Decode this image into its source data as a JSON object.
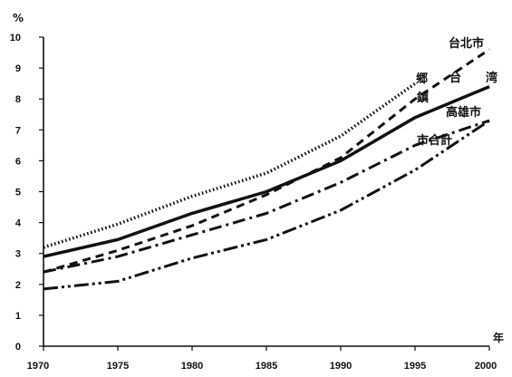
{
  "chart_data": {
    "type": "line",
    "y_unit": "%",
    "x_unit": "年",
    "xlim": [
      1970,
      2000
    ],
    "ylim": [
      0,
      10
    ],
    "x_ticks": [
      "1970",
      "1975",
      "1980",
      "1985",
      "1990",
      "1995",
      "2000"
    ],
    "y_ticks": [
      "0",
      "1",
      "2",
      "3",
      "4",
      "5",
      "6",
      "7",
      "8",
      "9",
      "10"
    ],
    "grid": false,
    "series": [
      {
        "name": "台北市",
        "style": "dashed",
        "x": [
          1970,
          1975,
          1980,
          1985,
          1990,
          1995,
          2000
        ],
        "y": [
          2.4,
          3.1,
          3.9,
          4.9,
          6.1,
          8.0,
          9.6
        ]
      },
      {
        "name": "台　湾",
        "style": "solid",
        "x": [
          1970,
          1975,
          1980,
          1985,
          1990,
          1995,
          2000
        ],
        "y": [
          2.9,
          3.45,
          4.3,
          5.0,
          6.0,
          7.4,
          8.4
        ]
      },
      {
        "name": "郷　鎮",
        "style": "dotted",
        "x": [
          1970,
          1975,
          1980,
          1985,
          1990,
          1995
        ],
        "y": [
          3.2,
          3.95,
          4.85,
          5.6,
          6.8,
          8.5
        ]
      },
      {
        "name": "高雄市",
        "style": "dash-dot",
        "x": [
          1970,
          1975,
          1980,
          1985,
          1990,
          1995,
          2000
        ],
        "y": [
          2.4,
          2.9,
          3.6,
          4.3,
          5.3,
          6.5,
          7.3
        ]
      },
      {
        "name": "市合計",
        "style": "dash-dot-dot",
        "x": [
          1970,
          1975,
          1980,
          1985,
          1990,
          1995,
          2000
        ],
        "y": [
          1.85,
          2.1,
          2.85,
          3.45,
          4.4,
          5.7,
          7.3
        ]
      }
    ]
  }
}
